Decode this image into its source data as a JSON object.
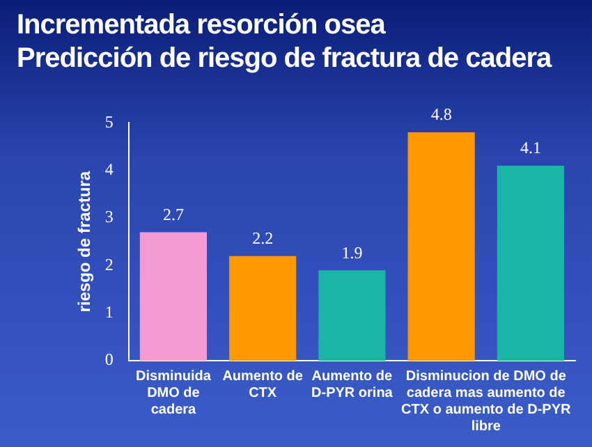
{
  "chart_data": {
    "type": "bar",
    "title": "Incrementada resorción osea\nPredicción de riesgo de fractura de cadera",
    "ylabel": "riesgo de fractura",
    "categories": [
      "Disminuida DMO de cadera",
      "Aumento de CTX",
      "Aumento de D-PYR orina",
      "Disminucion de DMO de cadera mas aumento de CTX o aumento de D-PYR libre",
      null
    ],
    "values": [
      2.7,
      2.2,
      1.9,
      4.8,
      4.1
    ],
    "colors": [
      "#f59ad2",
      "#ff9900",
      "#19b6a8",
      "#ff9900",
      "#19b6a8"
    ],
    "ylim": [
      0,
      5
    ],
    "yticks": [
      0,
      1,
      2,
      3,
      4,
      5
    ],
    "grid": false,
    "legend": false,
    "data_labels": true
  }
}
